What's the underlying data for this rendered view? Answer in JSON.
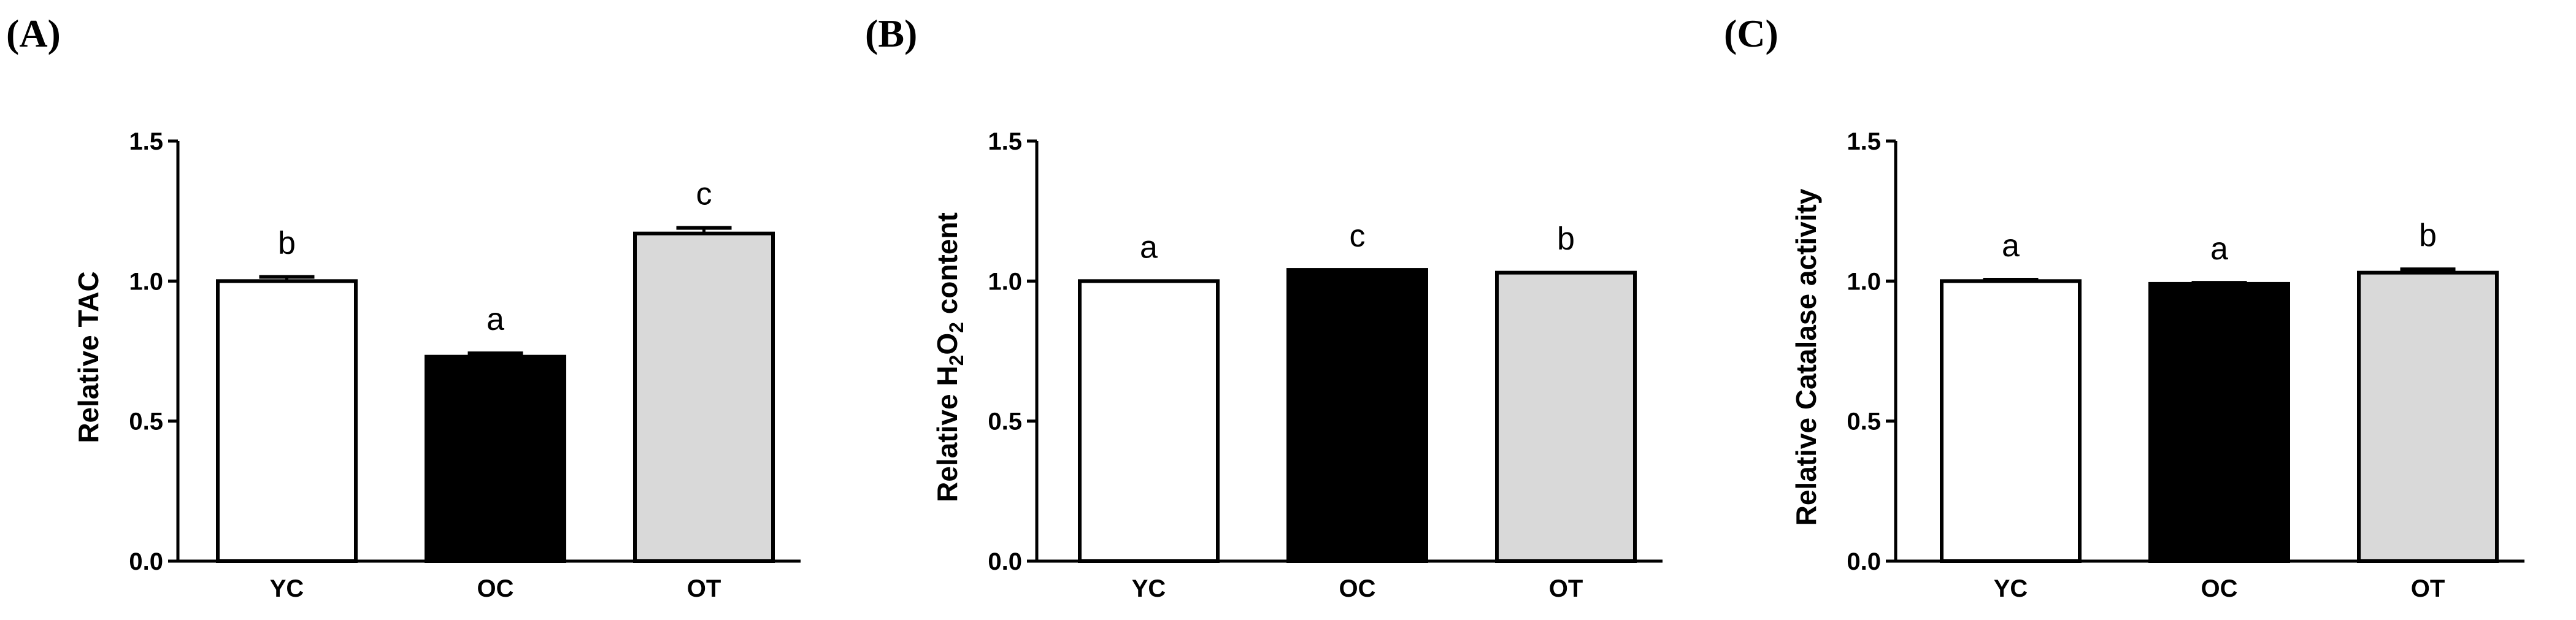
{
  "panels": [
    {
      "letter": "(A)"
    },
    {
      "letter": "(B)"
    },
    {
      "letter": "(C)"
    }
  ],
  "chart_data": [
    {
      "type": "bar",
      "categories": [
        "YC",
        "OC",
        "OT"
      ],
      "values": [
        1.0,
        0.73,
        1.17
      ],
      "errors": [
        0.015,
        0.012,
        0.02
      ],
      "significance": [
        "b",
        "a",
        "c"
      ],
      "bar_colors": [
        "#ffffff",
        "#000000",
        "#d9d9d9"
      ],
      "ylabel": "Relative TAC",
      "ylabel_sub": "",
      "ylabel_post": "",
      "ylim": [
        0,
        1.5
      ],
      "yticks": [
        "0.0",
        "0.5",
        "1.0",
        "1.5"
      ]
    },
    {
      "type": "bar",
      "categories": [
        "YC",
        "OC",
        "OT"
      ],
      "values": [
        1.0,
        1.04,
        1.03
      ],
      "errors": [
        0.0,
        0.0,
        0.0
      ],
      "significance": [
        "a",
        "c",
        "b"
      ],
      "bar_colors": [
        "#ffffff",
        "#000000",
        "#d9d9d9"
      ],
      "ylabel": "Relative H",
      "ylabel_sub": "2",
      "ylabel_mid": "O",
      "ylabel_sub2": "2",
      "ylabel_post": " content",
      "ylim": [
        0,
        1.5
      ],
      "yticks": [
        "0.0",
        "0.5",
        "1.0",
        "1.5"
      ]
    },
    {
      "type": "bar",
      "categories": [
        "YC",
        "OC",
        "OT"
      ],
      "values": [
        1.0,
        0.99,
        1.03
      ],
      "errors": [
        0.005,
        0.004,
        0.012
      ],
      "significance": [
        "a",
        "a",
        "b"
      ],
      "bar_colors": [
        "#ffffff",
        "#000000",
        "#d9d9d9"
      ],
      "ylabel": "Relative Catalase activity",
      "ylabel_sub": "",
      "ylabel_post": "",
      "ylim": [
        0,
        1.5
      ],
      "yticks": [
        "0.0",
        "0.5",
        "1.0",
        "1.5"
      ]
    }
  ]
}
